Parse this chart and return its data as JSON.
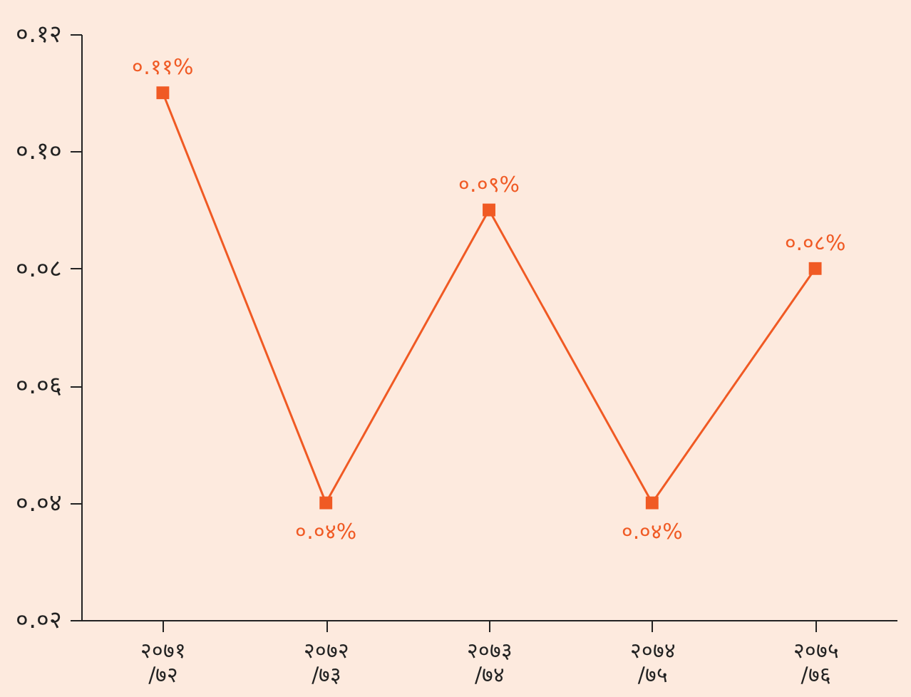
{
  "chart_data": {
    "type": "line",
    "categories": [
      "२०७१/७२",
      "२०७२/७३",
      "२०७३/७४",
      "२०७४/७५",
      "२०७५/७६"
    ],
    "series": [
      {
        "color": "#f05a24",
        "values": [
          0.11,
          0.04,
          0.09,
          0.04,
          0.08
        ],
        "value_labels": [
          "०.११%",
          "०.०४%",
          "०.०९%",
          "०.०४%",
          "०.०८%"
        ]
      }
    ],
    "ylim": [
      0.02,
      0.12
    ],
    "yticks": [
      {
        "value": 0.02,
        "label": "०.०२"
      },
      {
        "value": 0.04,
        "label": "०.०४"
      },
      {
        "value": 0.06,
        "label": "०.०६"
      },
      {
        "value": 0.08,
        "label": "०.०८"
      },
      {
        "value": 0.1,
        "label": "०.१०"
      },
      {
        "value": 0.12,
        "label": "०.१२"
      }
    ],
    "grid": false,
    "marker": "square",
    "line_style": "solid"
  }
}
